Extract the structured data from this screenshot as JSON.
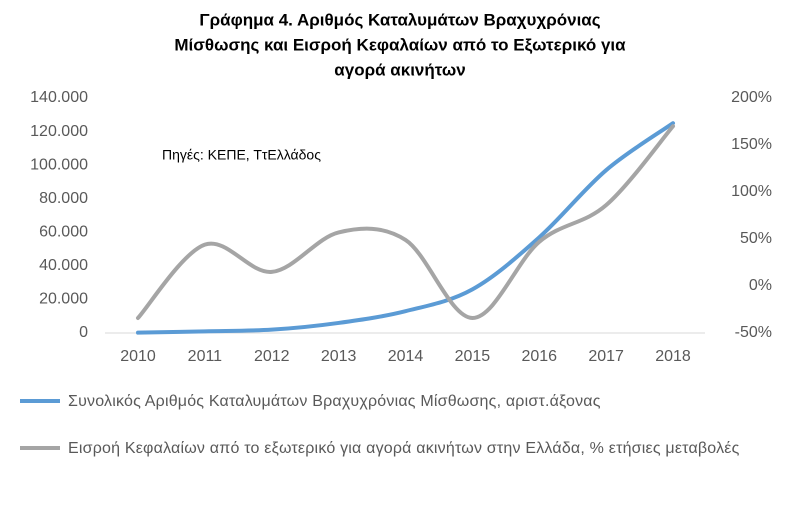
{
  "chart_data": {
    "type": "line",
    "title": [
      "Γράφημα 4. Αριθμός Καταλυμάτων Βραχυχρόνιας",
      "Μίσθωσης και Εισροή Κεφαλαίων από το Εξωτερικό για",
      "αγορά ακινήτων"
    ],
    "annotation": "Πηγές: ΚΕΠΕ, ΤτΕλλάδος",
    "categories": [
      "2010",
      "2011",
      "2012",
      "2013",
      "2014",
      "2015",
      "2016",
      "2017",
      "2018"
    ],
    "series": [
      {
        "name": "Συνολικός Αριθμός Καταλυμάτων Βραχυχρόνιας Μίσθωσης, αριστ.άξονας",
        "color": "#5b9bd5",
        "axis": "y",
        "values": [
          200,
          1000,
          2000,
          6000,
          13000,
          26000,
          57000,
          97000,
          125000
        ]
      },
      {
        "name": "Εισροή Κεφαλαίων από το εξωτερικό για αγορά ακινήτων στην Ελλάδα, % ετήσιες μεταβολές",
        "color": "#a5a5a5",
        "axis": "y2",
        "values": [
          -34,
          44,
          15,
          57,
          49,
          -34,
          47,
          86,
          170
        ]
      }
    ],
    "ylim": [
      0,
      140000
    ],
    "yticks": [
      0,
      {
        "value": 20000,
        "label": "20.000"
      },
      {
        "value": 40000,
        "label": "40.000"
      },
      {
        "value": 60000,
        "label": "60.000"
      },
      {
        "value": 80000,
        "label": "80.000"
      },
      {
        "value": 100000,
        "label": "100.000"
      },
      {
        "value": 120000,
        "label": "120.000"
      },
      {
        "value": 140000,
        "label": "140.000"
      }
    ],
    "y2lim": [
      -50,
      200
    ],
    "y2ticks": [
      {
        "value": -50,
        "label": "-50%"
      },
      {
        "value": 0,
        "label": "0%"
      },
      {
        "value": 50,
        "label": "50%"
      },
      {
        "value": 100,
        "label": "100%"
      },
      {
        "value": 150,
        "label": "150%"
      },
      {
        "value": 200,
        "label": "200%"
      }
    ],
    "grid": false
  }
}
